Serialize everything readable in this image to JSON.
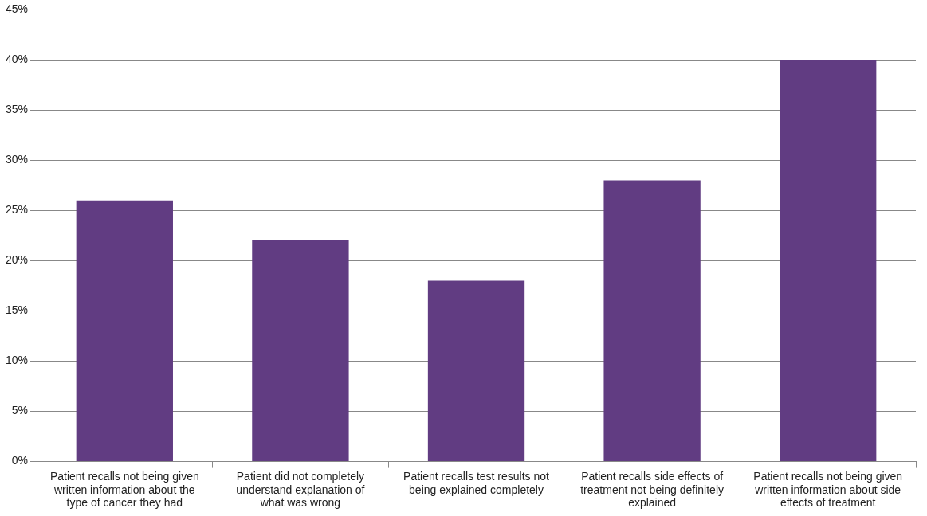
{
  "chart_data": {
    "type": "bar",
    "categories": [
      "Patient recalls not being given written information about the type of cancer they had",
      "Patient did not completely understand explanation of what was wrong",
      "Patient recalls test results not being explained completely",
      "Patient recalls side effects of treatment not being definitely explained",
      "Patient recalls not being given written information about side effects of treatment"
    ],
    "values": [
      26,
      22,
      18,
      28,
      40
    ],
    "color": "#613c82",
    "ylim": [
      0,
      45
    ],
    "yticks": [
      {
        "value": 0,
        "label": "0%"
      },
      {
        "value": 5,
        "label": "5%"
      },
      {
        "value": 10,
        "label": "10%"
      },
      {
        "value": 15,
        "label": "15%"
      },
      {
        "value": 20,
        "label": "20%"
      },
      {
        "value": 25,
        "label": "25%"
      },
      {
        "value": 30,
        "label": "30%"
      },
      {
        "value": 35,
        "label": "35%"
      },
      {
        "value": 40,
        "label": "40%"
      },
      {
        "value": 45,
        "label": "45%"
      }
    ],
    "grid": "y",
    "legend": false
  }
}
